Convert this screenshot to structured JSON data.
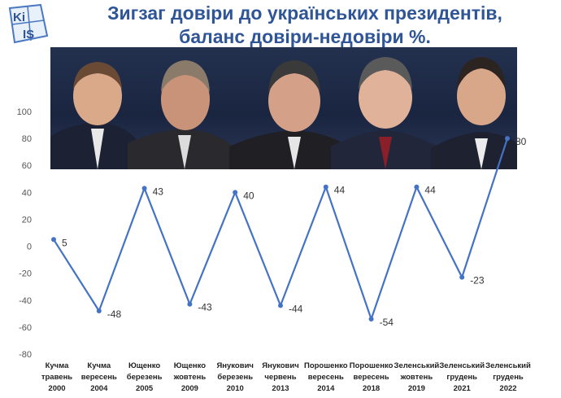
{
  "header": {
    "logo_text_top": "Ki",
    "logo_text_bottom": "IS",
    "title_line1": "Зигзаг довіри до українських президентів,",
    "title_line2": "баланс довіри-недовіри %."
  },
  "photos": {
    "figures": [
      "portrait-1",
      "portrait-2",
      "portrait-3",
      "portrait-4",
      "portrait-5"
    ]
  },
  "colors": {
    "title": "#2f5597",
    "line": "#4472c4",
    "axis_text": "#555555",
    "grid": "#d9d9d9"
  },
  "chart_data": {
    "type": "line",
    "title": "Зигзаг довіри до українських президентів, баланс довіри-недовіри %.",
    "categories": [
      [
        "Кучма",
        "травень",
        "2000"
      ],
      [
        "Кучма",
        "вересень",
        "2004"
      ],
      [
        "Ющенко",
        "березень",
        "2005"
      ],
      [
        "Ющенко",
        "жовтень",
        "2009"
      ],
      [
        "Янукович",
        "березень",
        "2010"
      ],
      [
        "Янукович",
        "червень",
        "2013"
      ],
      [
        "Порошенко",
        "вересень",
        "2014"
      ],
      [
        "Порошенко",
        "вересень",
        "2018"
      ],
      [
        "Зеленський",
        "жовтень",
        "2019"
      ],
      [
        "Зеленський",
        "грудень",
        "2021"
      ],
      [
        "Зеленський",
        "грудень",
        "2022"
      ]
    ],
    "values": [
      5,
      -48,
      43,
      -43,
      40,
      -44,
      44,
      -54,
      44,
      -23,
      80
    ],
    "data_labels": [
      "5",
      "-48",
      "43",
      "-43",
      "40",
      "-44",
      "44",
      "-54",
      "44",
      "-23",
      "80"
    ],
    "y_ticks": [
      100,
      80,
      60,
      40,
      20,
      0,
      -20,
      -40,
      -60,
      -80
    ],
    "y_tick_labels": [
      "100",
      "80",
      "60",
      "40",
      "20",
      "0",
      "-20",
      "-40",
      "-60",
      "-80"
    ],
    "ylim": [
      -80,
      100
    ],
    "grid": false,
    "xlabel": "",
    "ylabel": ""
  }
}
